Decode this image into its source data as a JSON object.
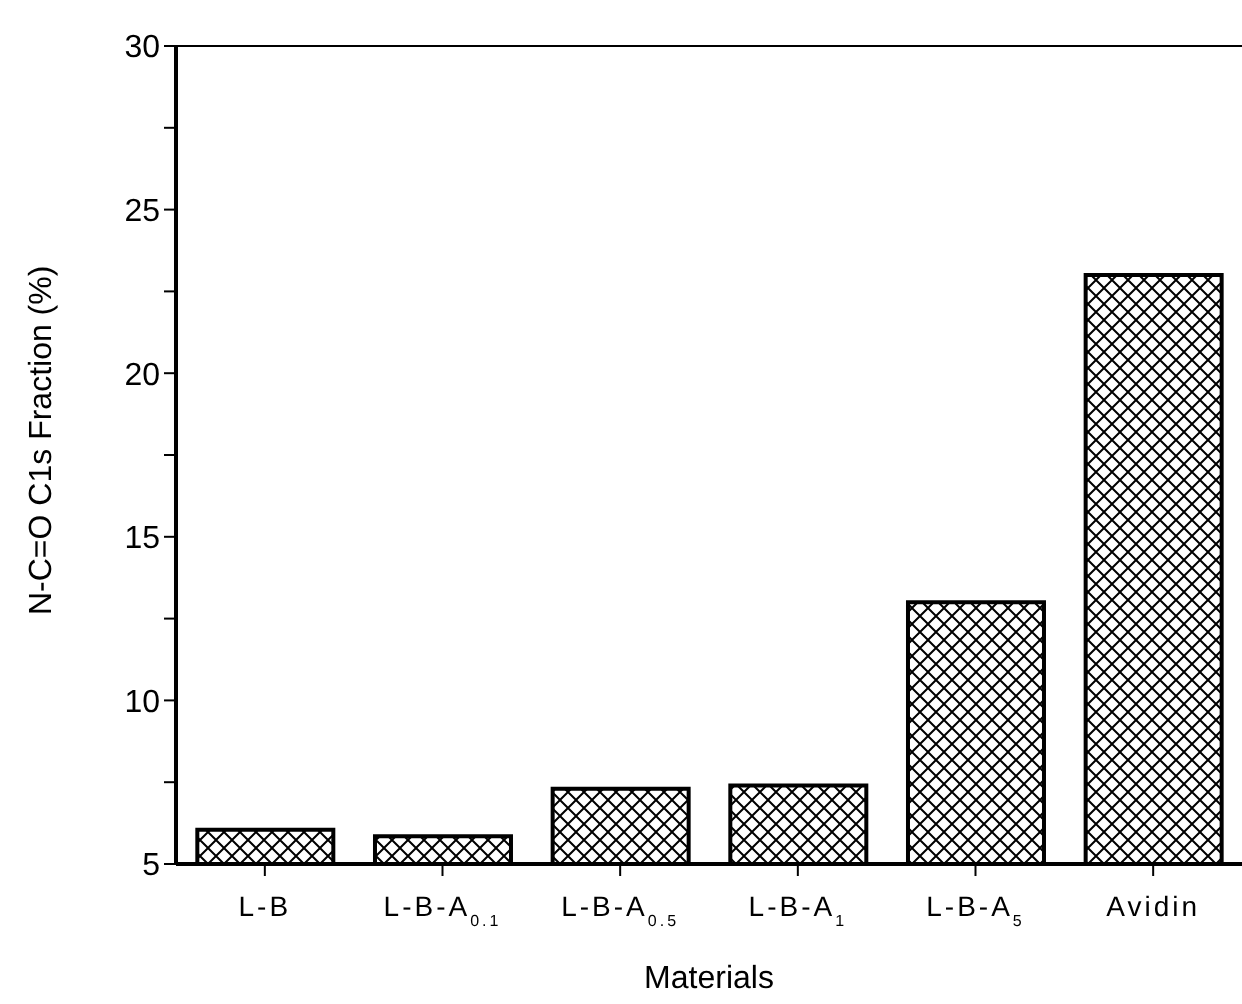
{
  "chart_data": {
    "type": "bar",
    "xlabel": "Materials",
    "ylabel": "N-C=O C1s Fraction (%)",
    "categories": [
      "L-B",
      "L-B-A$_{0.1}$",
      "L-B-A$_{0.5}$",
      "L-B-A$_{1}$",
      "L-B-A$_{5}$",
      "Avidin"
    ],
    "values": [
      6.05,
      5.85,
      7.3,
      7.4,
      13,
      23
    ],
    "color": "#000000",
    "ylim": [
      5,
      30
    ],
    "yticks": [
      5,
      {
        "value": 7.5,
        "label": null
      },
      10,
      {
        "value": 12.5,
        "label": null
      },
      15,
      {
        "value": 17.5,
        "label": null
      },
      20,
      {
        "value": 22.5,
        "label": null
      },
      25,
      {
        "value": 27.5,
        "label": null
      },
      30
    ],
    "grid": false,
    "legend": false
  }
}
